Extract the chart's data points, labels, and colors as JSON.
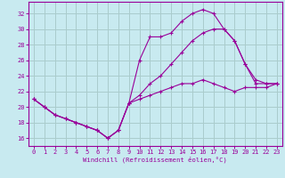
{
  "xlabel": "Windchill (Refroidissement éolien,°C)",
  "bg_color": "#c8eaf0",
  "grid_color": "#aacccc",
  "line_color": "#990099",
  "xlim": [
    -0.5,
    23.5
  ],
  "ylim": [
    15.0,
    33.5
  ],
  "yticks": [
    16,
    18,
    20,
    22,
    24,
    26,
    28,
    30,
    32
  ],
  "xticks": [
    0,
    1,
    2,
    3,
    4,
    5,
    6,
    7,
    8,
    9,
    10,
    11,
    12,
    13,
    14,
    15,
    16,
    17,
    18,
    19,
    20,
    21,
    22,
    23
  ],
  "series1_x": [
    0,
    1,
    2,
    3,
    4,
    5,
    6,
    7,
    8,
    9,
    10,
    11,
    12,
    13,
    14,
    15,
    16,
    17,
    18,
    19,
    20,
    21,
    22,
    23
  ],
  "series1_y": [
    21.0,
    20.0,
    19.0,
    18.5,
    18.0,
    17.5,
    17.0,
    16.0,
    17.0,
    20.5,
    26.0,
    29.0,
    29.0,
    29.5,
    31.0,
    32.0,
    32.5,
    32.0,
    30.0,
    28.5,
    25.5,
    23.0,
    23.0,
    23.0
  ],
  "series2_x": [
    0,
    1,
    2,
    3,
    4,
    5,
    6,
    7,
    8,
    9,
    10,
    11,
    12,
    13,
    14,
    15,
    16,
    17,
    18,
    19,
    20,
    21,
    22,
    23
  ],
  "series2_y": [
    21.0,
    20.0,
    19.0,
    18.5,
    18.0,
    17.5,
    17.0,
    16.0,
    17.0,
    20.5,
    21.0,
    21.5,
    22.0,
    22.5,
    23.0,
    23.0,
    23.5,
    23.0,
    22.5,
    22.0,
    22.5,
    22.5,
    22.5,
    23.0
  ],
  "series3_x": [
    0,
    1,
    2,
    3,
    4,
    5,
    6,
    7,
    8,
    9,
    10,
    11,
    12,
    13,
    14,
    15,
    16,
    17,
    18,
    19,
    20,
    21,
    22,
    23
  ],
  "series3_y": [
    21.0,
    20.0,
    19.0,
    18.5,
    18.0,
    17.5,
    17.0,
    16.0,
    17.0,
    20.5,
    21.5,
    23.0,
    24.0,
    25.5,
    27.0,
    28.5,
    29.5,
    30.0,
    30.0,
    28.5,
    25.5,
    23.5,
    23.0,
    23.0
  ]
}
